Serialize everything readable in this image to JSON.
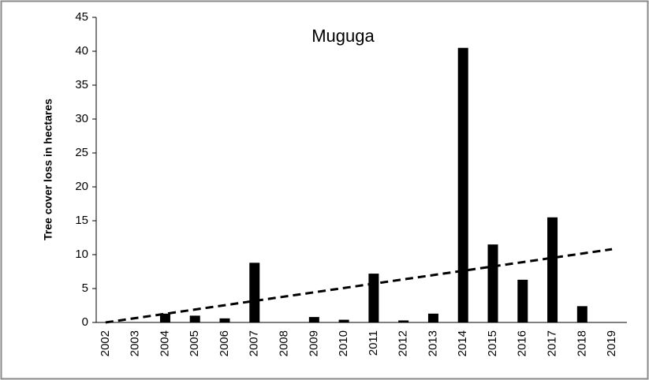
{
  "chart_data": {
    "type": "bar",
    "title": "Muguga",
    "y_label": "Tree cover loss in hectares",
    "categories": [
      "2002",
      "2003",
      "2004",
      "2005",
      "2006",
      "2007",
      "2008",
      "2009",
      "2010",
      "2011",
      "2012",
      "2013",
      "2014",
      "2015",
      "2016",
      "2017",
      "2018",
      "2019"
    ],
    "values": [
      0,
      0,
      1.3,
      1.0,
      0.6,
      8.8,
      0,
      0.8,
      0.4,
      7.2,
      0.3,
      1.3,
      40.5,
      11.5,
      6.3,
      15.5,
      2.4,
      0
    ],
    "color": "#000000",
    "trendline": {
      "start": 0,
      "end": 10.8
    },
    "ylim": [
      0,
      45
    ],
    "yticks": [
      0,
      5,
      10,
      15,
      20,
      25,
      30,
      35,
      40,
      45
    ],
    "grid": false
  }
}
